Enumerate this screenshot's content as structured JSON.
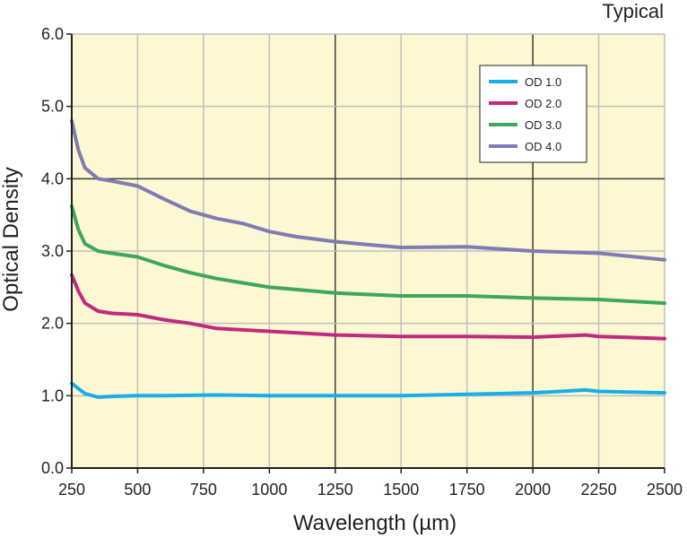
{
  "chart_data": {
    "type": "line",
    "annotation": "Typical",
    "xlabel": "Wavelength (µm)",
    "ylabel": "Optical Density",
    "xlim": [
      250,
      2500
    ],
    "ylim": [
      0,
      6
    ],
    "x_ticks": [
      "250",
      "500",
      "750",
      "1000",
      "1250",
      "1500",
      "1750",
      "2000",
      "2250",
      "2500"
    ],
    "y_ticks": [
      "0.0",
      "1.0",
      "2.0",
      "3.0",
      "4.0",
      "5.0",
      "6.0"
    ],
    "grid": true,
    "legend_position": "top-right",
    "colors": {
      "plot_background": "#fdf8d2",
      "grid_light": "#bfbfbf",
      "grid_dark": "#3a3a3a",
      "axis": "#231f20"
    },
    "series": [
      {
        "name": "OD 1.0",
        "color": "#19aee8",
        "x": [
          250,
          275,
          300,
          350,
          400,
          500,
          600,
          800,
          1000,
          1250,
          1500,
          1750,
          2000,
          2200,
          2250,
          2500
        ],
        "y": [
          1.17,
          1.1,
          1.03,
          0.98,
          0.99,
          1.0,
          1.0,
          1.01,
          1.0,
          1.0,
          1.0,
          1.02,
          1.04,
          1.08,
          1.06,
          1.04
        ]
      },
      {
        "name": "OD 2.0",
        "color": "#c2297f",
        "x": [
          250,
          275,
          300,
          350,
          400,
          500,
          600,
          700,
          800,
          1000,
          1250,
          1500,
          1750,
          2000,
          2200,
          2250,
          2500
        ],
        "y": [
          2.67,
          2.45,
          2.28,
          2.17,
          2.14,
          2.12,
          2.05,
          2.0,
          1.93,
          1.89,
          1.84,
          1.82,
          1.82,
          1.81,
          1.84,
          1.82,
          1.79
        ]
      },
      {
        "name": "OD 3.0",
        "color": "#3ea75d",
        "x": [
          250,
          275,
          300,
          350,
          400,
          500,
          600,
          700,
          800,
          900,
          1000,
          1250,
          1500,
          1750,
          2000,
          2250,
          2500
        ],
        "y": [
          3.62,
          3.3,
          3.1,
          3.0,
          2.97,
          2.92,
          2.8,
          2.7,
          2.62,
          2.56,
          2.5,
          2.42,
          2.38,
          2.38,
          2.35,
          2.33,
          2.28
        ]
      },
      {
        "name": "OD 4.0",
        "color": "#7f7bb3",
        "x": [
          250,
          275,
          300,
          350,
          400,
          500,
          600,
          700,
          800,
          900,
          1000,
          1100,
          1250,
          1400,
          1500,
          1750,
          2000,
          2250,
          2500
        ],
        "y": [
          4.8,
          4.4,
          4.15,
          4.0,
          3.97,
          3.9,
          3.72,
          3.55,
          3.45,
          3.38,
          3.27,
          3.2,
          3.13,
          3.08,
          3.05,
          3.06,
          3.0,
          2.97,
          2.88
        ]
      }
    ]
  }
}
